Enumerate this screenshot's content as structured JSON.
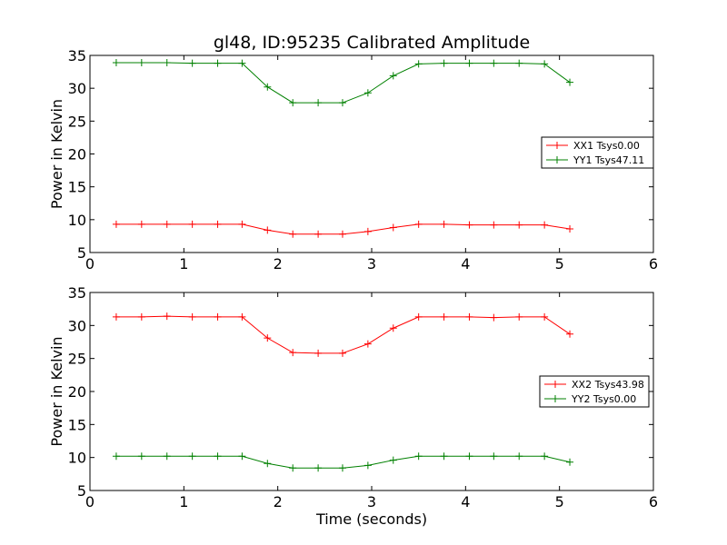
{
  "chart_data": [
    {
      "type": "line",
      "title": "gl48, ID:95235 Calibrated Amplitude",
      "xlabel": "",
      "ylabel": "Power in Kelvin",
      "xlim": [
        0,
        6
      ],
      "ylim": [
        5,
        35
      ],
      "xticks": [
        "0",
        "1",
        "2",
        "3",
        "4",
        "5",
        "6"
      ],
      "yticks": [
        "5",
        "10",
        "15",
        "20",
        "25",
        "30",
        "35"
      ],
      "grid": false,
      "legend": "center-right",
      "marker": "+",
      "x": [
        0.28,
        0.55,
        0.82,
        1.09,
        1.36,
        1.62,
        1.89,
        2.16,
        2.43,
        2.69,
        2.96,
        3.23,
        3.5,
        3.77,
        4.04,
        4.3,
        4.57,
        4.84,
        5.11
      ],
      "series": [
        {
          "name": "XX1 Tsys0.00",
          "color": "#ff0000",
          "values": [
            9.3,
            9.3,
            9.3,
            9.3,
            9.3,
            9.3,
            8.4,
            7.8,
            7.8,
            7.8,
            8.2,
            8.8,
            9.3,
            9.3,
            9.2,
            9.2,
            9.2,
            9.2,
            8.6
          ]
        },
        {
          "name": "YY1 Tsys47.11",
          "color": "#008000",
          "values": [
            33.9,
            33.9,
            33.9,
            33.8,
            33.8,
            33.8,
            30.2,
            27.8,
            27.8,
            27.8,
            29.3,
            31.9,
            33.7,
            33.8,
            33.8,
            33.8,
            33.8,
            33.7,
            30.9
          ]
        }
      ]
    },
    {
      "type": "line",
      "title": "",
      "xlabel": "Time (seconds)",
      "ylabel": "Power in Kelvin",
      "xlim": [
        0,
        6
      ],
      "ylim": [
        5,
        35
      ],
      "xticks": [
        "0",
        "1",
        "2",
        "3",
        "4",
        "5",
        "6"
      ],
      "yticks": [
        "5",
        "10",
        "15",
        "20",
        "25",
        "30",
        "35"
      ],
      "grid": false,
      "legend": "center-right",
      "marker": "+",
      "x": [
        0.28,
        0.55,
        0.82,
        1.09,
        1.36,
        1.62,
        1.89,
        2.16,
        2.43,
        2.69,
        2.96,
        3.23,
        3.5,
        3.77,
        4.04,
        4.3,
        4.57,
        4.84,
        5.11
      ],
      "series": [
        {
          "name": "XX2 Tsys43.98",
          "color": "#ff0000",
          "values": [
            31.3,
            31.3,
            31.4,
            31.3,
            31.3,
            31.3,
            28.1,
            25.9,
            25.8,
            25.8,
            27.2,
            29.6,
            31.3,
            31.3,
            31.3,
            31.2,
            31.3,
            31.3,
            28.7
          ]
        },
        {
          "name": "YY2 Tsys0.00",
          "color": "#008000",
          "values": [
            10.2,
            10.2,
            10.2,
            10.2,
            10.2,
            10.2,
            9.1,
            8.4,
            8.4,
            8.4,
            8.8,
            9.6,
            10.2,
            10.2,
            10.2,
            10.2,
            10.2,
            10.2,
            9.3
          ]
        }
      ]
    }
  ]
}
